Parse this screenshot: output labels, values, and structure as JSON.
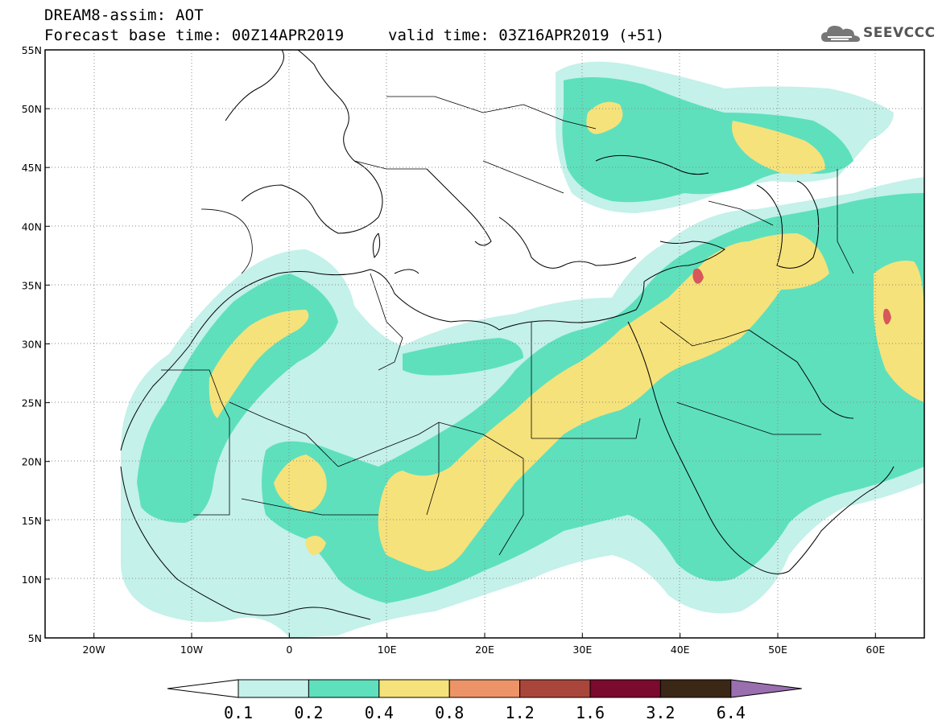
{
  "header": {
    "title": "DREAM8-assim: AOT",
    "base_time": "Forecast base time: 00Z14APR2019",
    "valid_time": "valid time: 03Z16APR2019 (+51)"
  },
  "logo": {
    "text": "SEEVCCC",
    "icon": "cloud-icon"
  },
  "map": {
    "variable": "AOT",
    "projection": "lat-lon",
    "lon_range": [
      -25,
      65
    ],
    "lat_range": [
      5,
      55
    ],
    "lon_ticks": [
      "20W",
      "10W",
      "0",
      "10E",
      "20E",
      "30E",
      "40E",
      "50E",
      "60E"
    ],
    "lat_ticks": [
      "55N",
      "50N",
      "45N",
      "40N",
      "35N",
      "30N",
      "25N",
      "20N",
      "15N",
      "10N",
      "5N"
    ],
    "grid": "dotted"
  },
  "colorbar": {
    "levels": [
      "0.1",
      "0.2",
      "0.4",
      "0.8",
      "1.2",
      "1.6",
      "3.2",
      "6.4"
    ],
    "colors": [
      "#ffffff",
      "#c4f1ea",
      "#5ee0bd",
      "#f6e27a",
      "#ec9468",
      "#a9463b",
      "#7a0a2e",
      "#3b2716",
      "#9a6fb0"
    ]
  }
}
